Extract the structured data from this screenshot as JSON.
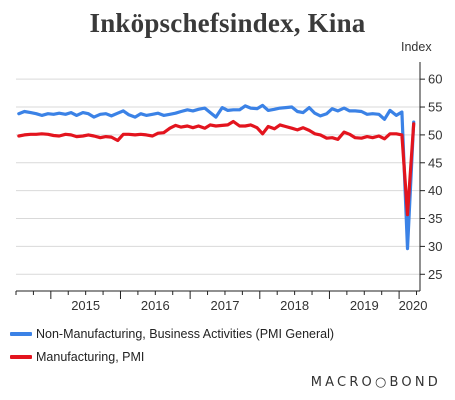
{
  "chart_data": {
    "type": "line",
    "title": "Inköpschefsindex, Kina",
    "ylabel": "Index",
    "ylim": [
      22,
      62
    ],
    "y_ticks": [
      25,
      30,
      35,
      40,
      45,
      50,
      55,
      60
    ],
    "y_axis_side": "right",
    "x_range": [
      2014.5,
      2020.3
    ],
    "x_ticks": [
      {
        "label": "2015",
        "at": 2015.0
      },
      {
        "label": "2016",
        "at": 2016.0
      },
      {
        "label": "2017",
        "at": 2017.0
      },
      {
        "label": "2018",
        "at": 2018.0
      },
      {
        "label": "2019",
        "at": 2019.0
      },
      {
        "label": "2020",
        "at": 2020.0
      }
    ],
    "grid": "horizontal",
    "legend_position": "bottom",
    "series": [
      {
        "name": "Non-Manufacturing, Business Activities (PMI General)",
        "color": "#3b82e6",
        "x": [
          2014.54,
          2014.62,
          2014.71,
          2014.79,
          2014.87,
          2014.96,
          2015.04,
          2015.12,
          2015.21,
          2015.29,
          2015.37,
          2015.46,
          2015.54,
          2015.62,
          2015.71,
          2015.79,
          2015.87,
          2015.96,
          2016.04,
          2016.12,
          2016.21,
          2016.29,
          2016.37,
          2016.46,
          2016.54,
          2016.62,
          2016.71,
          2016.79,
          2016.87,
          2016.96,
          2017.04,
          2017.12,
          2017.21,
          2017.29,
          2017.37,
          2017.46,
          2017.54,
          2017.62,
          2017.71,
          2017.79,
          2017.87,
          2017.96,
          2018.04,
          2018.12,
          2018.21,
          2018.29,
          2018.37,
          2018.46,
          2018.54,
          2018.62,
          2018.71,
          2018.79,
          2018.87,
          2018.96,
          2019.04,
          2019.12,
          2019.21,
          2019.29,
          2019.37,
          2019.46,
          2019.54,
          2019.62,
          2019.71,
          2019.79,
          2019.87,
          2019.96,
          2020.04,
          2020.12,
          2020.21
        ],
        "values": [
          53.8,
          54.2,
          54.0,
          53.8,
          53.5,
          53.8,
          53.7,
          53.9,
          53.7,
          54.0,
          53.5,
          54.0,
          53.8,
          53.2,
          53.7,
          53.8,
          53.4,
          53.9,
          54.3,
          53.6,
          53.2,
          53.8,
          53.5,
          53.7,
          53.9,
          53.5,
          53.7,
          53.9,
          54.2,
          54.5,
          54.3,
          54.6,
          54.8,
          54.0,
          53.2,
          54.9,
          54.4,
          54.5,
          54.5,
          55.2,
          54.8,
          54.7,
          55.3,
          54.4,
          54.6,
          54.8,
          54.9,
          55.0,
          54.2,
          54.0,
          54.9,
          53.9,
          53.4,
          53.8,
          54.7,
          54.3,
          54.8,
          54.3,
          54.3,
          54.2,
          53.7,
          53.8,
          53.7,
          52.8,
          54.4,
          53.5,
          54.1,
          29.6,
          52.3
        ]
      },
      {
        "name": "Manufacturing, PMI",
        "color": "#e3141e",
        "x": [
          2014.54,
          2014.62,
          2014.71,
          2014.79,
          2014.87,
          2014.96,
          2015.04,
          2015.12,
          2015.21,
          2015.29,
          2015.37,
          2015.46,
          2015.54,
          2015.62,
          2015.71,
          2015.79,
          2015.87,
          2015.96,
          2016.04,
          2016.12,
          2016.21,
          2016.29,
          2016.37,
          2016.46,
          2016.54,
          2016.62,
          2016.71,
          2016.79,
          2016.87,
          2016.96,
          2017.04,
          2017.12,
          2017.21,
          2017.29,
          2017.37,
          2017.46,
          2017.54,
          2017.62,
          2017.71,
          2017.79,
          2017.87,
          2017.96,
          2018.04,
          2018.12,
          2018.21,
          2018.29,
          2018.37,
          2018.46,
          2018.54,
          2018.62,
          2018.71,
          2018.79,
          2018.87,
          2018.96,
          2019.04,
          2019.12,
          2019.21,
          2019.29,
          2019.37,
          2019.46,
          2019.54,
          2019.62,
          2019.71,
          2019.79,
          2019.87,
          2019.96,
          2020.04,
          2020.12,
          2020.21
        ],
        "values": [
          49.8,
          50.0,
          50.1,
          50.1,
          50.2,
          50.1,
          49.9,
          49.8,
          50.1,
          50.0,
          49.7,
          49.8,
          50.0,
          49.8,
          49.5,
          49.7,
          49.6,
          49.0,
          50.1,
          50.1,
          50.0,
          50.1,
          50.0,
          49.8,
          50.3,
          50.4,
          51.2,
          51.7,
          51.4,
          51.6,
          51.3,
          51.6,
          51.2,
          51.8,
          51.6,
          51.7,
          51.8,
          52.4,
          51.6,
          51.6,
          51.8,
          51.3,
          50.2,
          51.5,
          51.1,
          51.8,
          51.5,
          51.2,
          50.9,
          51.3,
          50.8,
          50.2,
          50.0,
          49.4,
          49.5,
          49.2,
          50.5,
          50.1,
          49.5,
          49.4,
          49.7,
          49.5,
          49.8,
          49.3,
          50.2,
          50.2,
          50.0,
          35.7,
          52.0
        ]
      }
    ]
  },
  "legend_items": [
    {
      "label": "Non-Manufacturing, Business Activities (PMI General)"
    },
    {
      "label": "Manufacturing, PMI"
    }
  ],
  "branding": {
    "logo_text": "MACRO○BOND"
  },
  "colors": {
    "axis": "#222222",
    "grid": "#d9d9d9",
    "tick_text": "#333333"
  }
}
